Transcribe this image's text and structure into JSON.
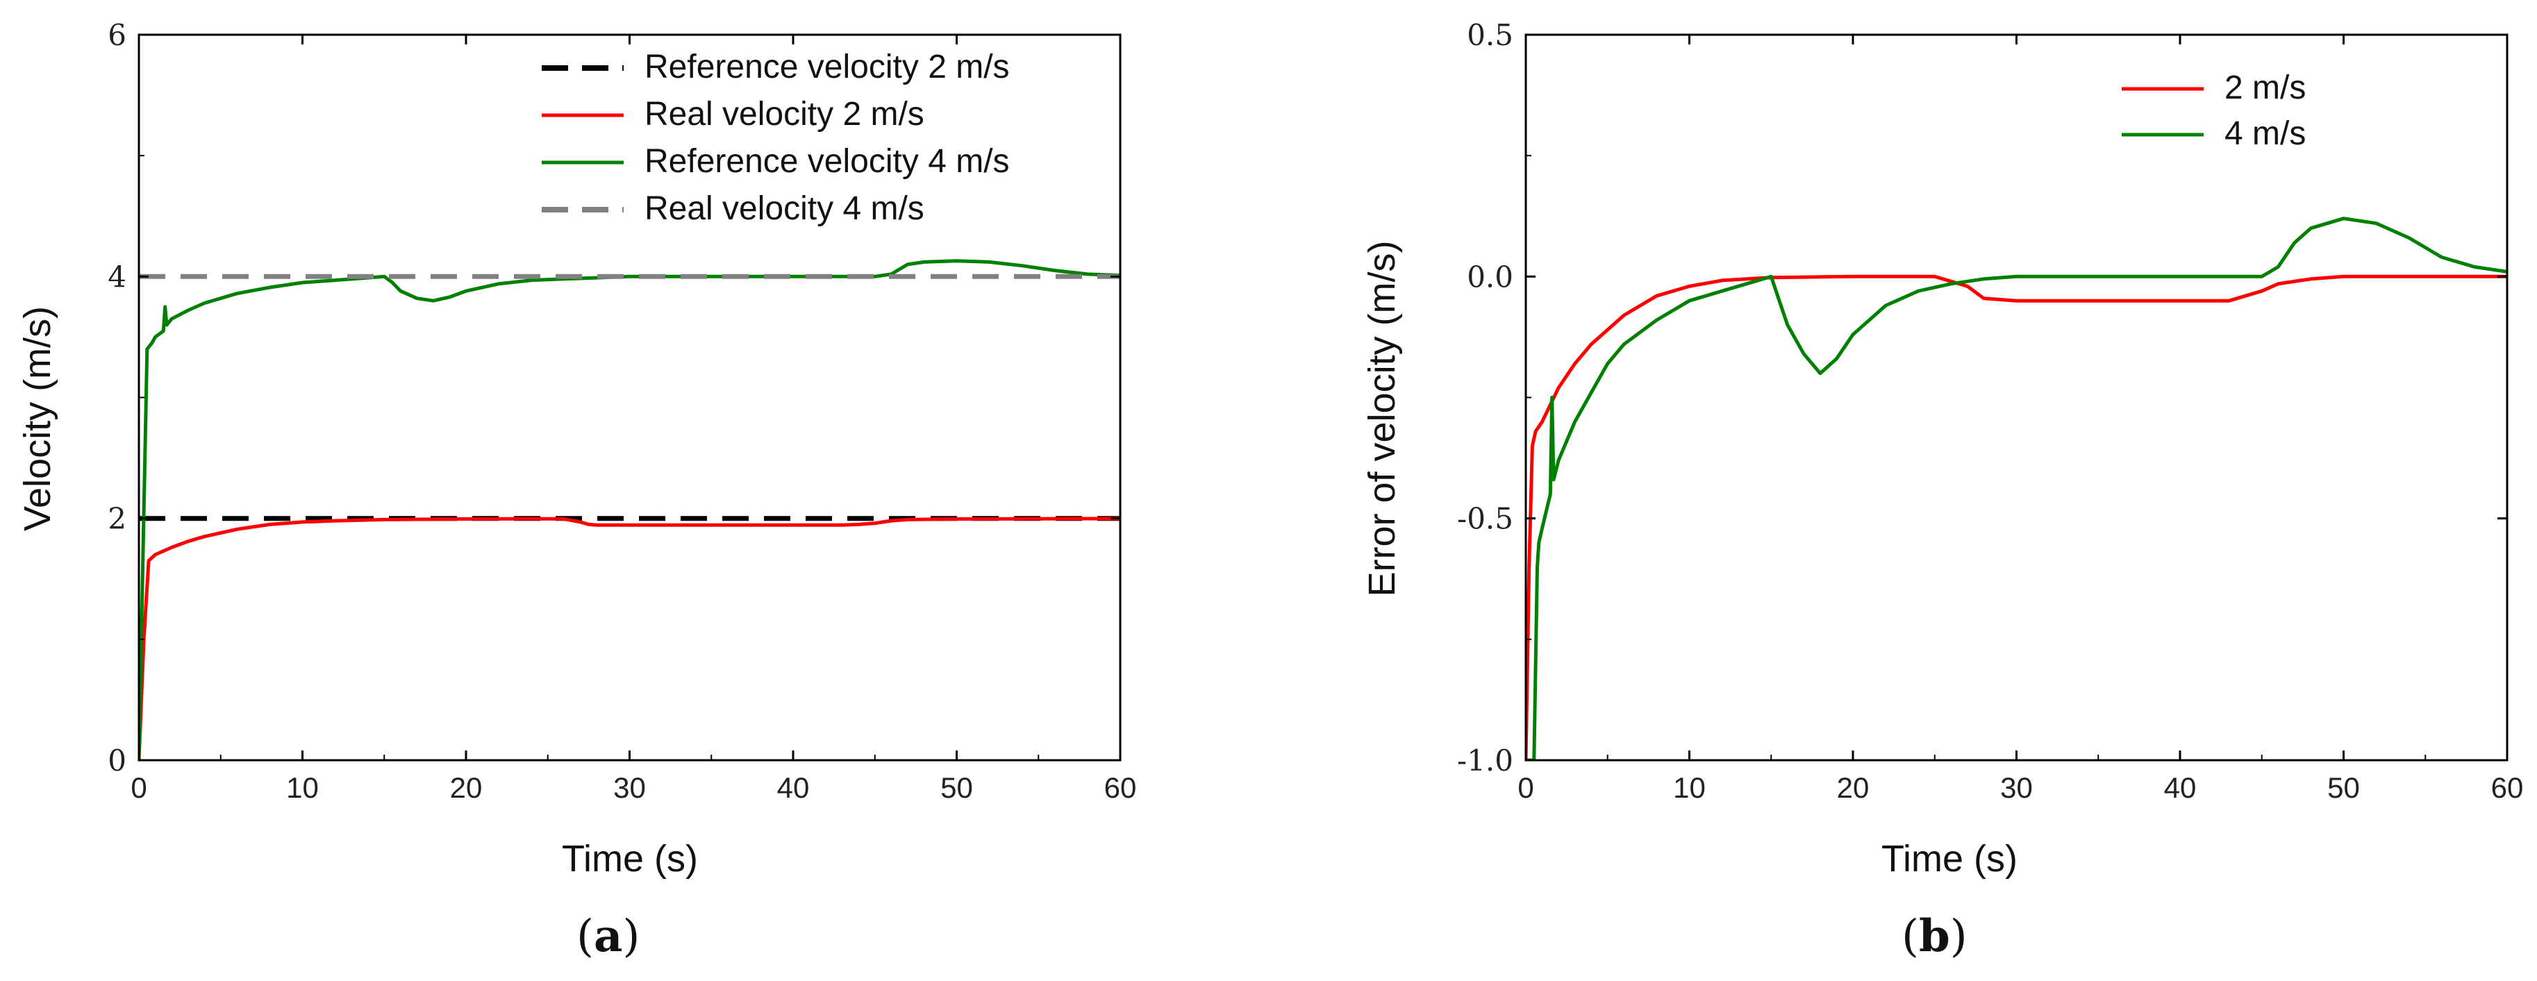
{
  "chart_data": [
    {
      "type": "line",
      "panel_label": {
        "open": "(",
        "letter": "a",
        "close": ")"
      },
      "title": "",
      "xlabel": "Time (s)",
      "ylabel": "Velocity (m/s)",
      "xlim": [
        0,
        60
      ],
      "ylim": [
        0,
        6
      ],
      "xticks": [
        0,
        10,
        20,
        30,
        40,
        50,
        60
      ],
      "yticks": [
        0,
        2,
        4,
        6
      ],
      "grid": false,
      "legend_position": "top-right",
      "series": [
        {
          "name": "Reference velocity 2 m/s",
          "style": "dashed",
          "color": "#000000",
          "x": [
            0,
            60
          ],
          "y": [
            2,
            2
          ]
        },
        {
          "name": "Real velocity 2 m/s",
          "style": "solid",
          "color": "#ff0000",
          "x": [
            0,
            0.3,
            0.6,
            1,
            2,
            3,
            4,
            5,
            6,
            8,
            10,
            12,
            15,
            20,
            25,
            26,
            27,
            27.5,
            28,
            30,
            35,
            40,
            43,
            44,
            45,
            46,
            47,
            50,
            55,
            60
          ],
          "y": [
            0,
            1.0,
            1.65,
            1.7,
            1.76,
            1.81,
            1.85,
            1.88,
            1.91,
            1.95,
            1.97,
            1.98,
            1.99,
            1.995,
            1.997,
            1.995,
            1.97,
            1.95,
            1.945,
            1.945,
            1.945,
            1.945,
            1.945,
            1.95,
            1.96,
            1.98,
            1.99,
            1.995,
            1.997,
            1.998
          ]
        },
        {
          "name": "Reference velocity 4 m/s",
          "style": "solid",
          "color": "#008000",
          "x": [
            0,
            0.5,
            0.8,
            1,
            1.5,
            1.6,
            1.7,
            2,
            3,
            4,
            5,
            6,
            8,
            10,
            12,
            14,
            15,
            15.5,
            16,
            17,
            18,
            19,
            20,
            22,
            24,
            26,
            28,
            30,
            35,
            40,
            45,
            46,
            47,
            48,
            50,
            52,
            54,
            56,
            58,
            60
          ],
          "y": [
            0,
            3.4,
            3.45,
            3.5,
            3.55,
            3.75,
            3.6,
            3.65,
            3.72,
            3.78,
            3.82,
            3.86,
            3.91,
            3.95,
            3.97,
            3.99,
            4.0,
            3.95,
            3.88,
            3.82,
            3.8,
            3.83,
            3.88,
            3.94,
            3.97,
            3.98,
            3.99,
            4.0,
            4.0,
            4.0,
            4.0,
            4.02,
            4.1,
            4.12,
            4.13,
            4.12,
            4.09,
            4.05,
            4.02,
            4.01
          ]
        },
        {
          "name": "Real velocity 4 m/s",
          "style": "dashed",
          "color": "#808080",
          "x": [
            0,
            60
          ],
          "y": [
            4,
            4
          ]
        }
      ]
    },
    {
      "type": "line",
      "panel_label": {
        "open": "(",
        "letter": "b",
        "close": ")"
      },
      "title": "",
      "xlabel": "Time (s)",
      "ylabel": "Error of velocity (m/s)",
      "xlim": [
        0,
        60
      ],
      "ylim": [
        -1.0,
        0.5
      ],
      "xticks": [
        0,
        10,
        20,
        30,
        40,
        50,
        60
      ],
      "yticks": [
        -1.0,
        -0.5,
        0.0,
        0.5
      ],
      "ytick_labels": [
        "-1.0",
        "-0.5",
        "0.0",
        "0.5"
      ],
      "grid": false,
      "legend_position": "top-right",
      "series": [
        {
          "name": "2 m/s",
          "style": "solid",
          "color": "#ff0000",
          "x": [
            0,
            0.2,
            0.4,
            0.6,
            1,
            2,
            3,
            4,
            5,
            6,
            8,
            10,
            12,
            15,
            20,
            25,
            27,
            28,
            30,
            35,
            40,
            43,
            44,
            45,
            46,
            48,
            50,
            55,
            60
          ],
          "y": [
            -1.0,
            -0.6,
            -0.35,
            -0.32,
            -0.3,
            -0.23,
            -0.18,
            -0.14,
            -0.11,
            -0.08,
            -0.04,
            -0.02,
            -0.008,
            -0.002,
            0.0,
            0.0,
            -0.02,
            -0.045,
            -0.05,
            -0.05,
            -0.05,
            -0.05,
            -0.04,
            -0.03,
            -0.015,
            -0.005,
            0.0,
            0.0,
            0.0
          ]
        },
        {
          "name": "4 m/s",
          "style": "solid",
          "color": "#008000",
          "x": [
            0,
            0.5,
            0.7,
            0.8,
            1,
            1.5,
            1.6,
            1.7,
            2,
            3,
            4,
            5,
            6,
            8,
            10,
            12,
            14,
            15,
            15.5,
            16,
            17,
            18,
            19,
            20,
            22,
            24,
            26,
            28,
            30,
            35,
            40,
            45,
            46,
            47,
            48,
            50,
            52,
            54,
            56,
            58,
            60
          ],
          "y": [
            -1.0,
            -1.0,
            -0.6,
            -0.55,
            -0.52,
            -0.45,
            -0.25,
            -0.42,
            -0.38,
            -0.3,
            -0.24,
            -0.18,
            -0.14,
            -0.09,
            -0.05,
            -0.03,
            -0.01,
            0.0,
            -0.05,
            -0.1,
            -0.16,
            -0.2,
            -0.17,
            -0.12,
            -0.06,
            -0.03,
            -0.015,
            -0.005,
            0.0,
            0.0,
            0.0,
            0.0,
            0.02,
            0.07,
            0.1,
            0.12,
            0.11,
            0.08,
            0.04,
            0.02,
            0.01
          ]
        }
      ]
    }
  ]
}
